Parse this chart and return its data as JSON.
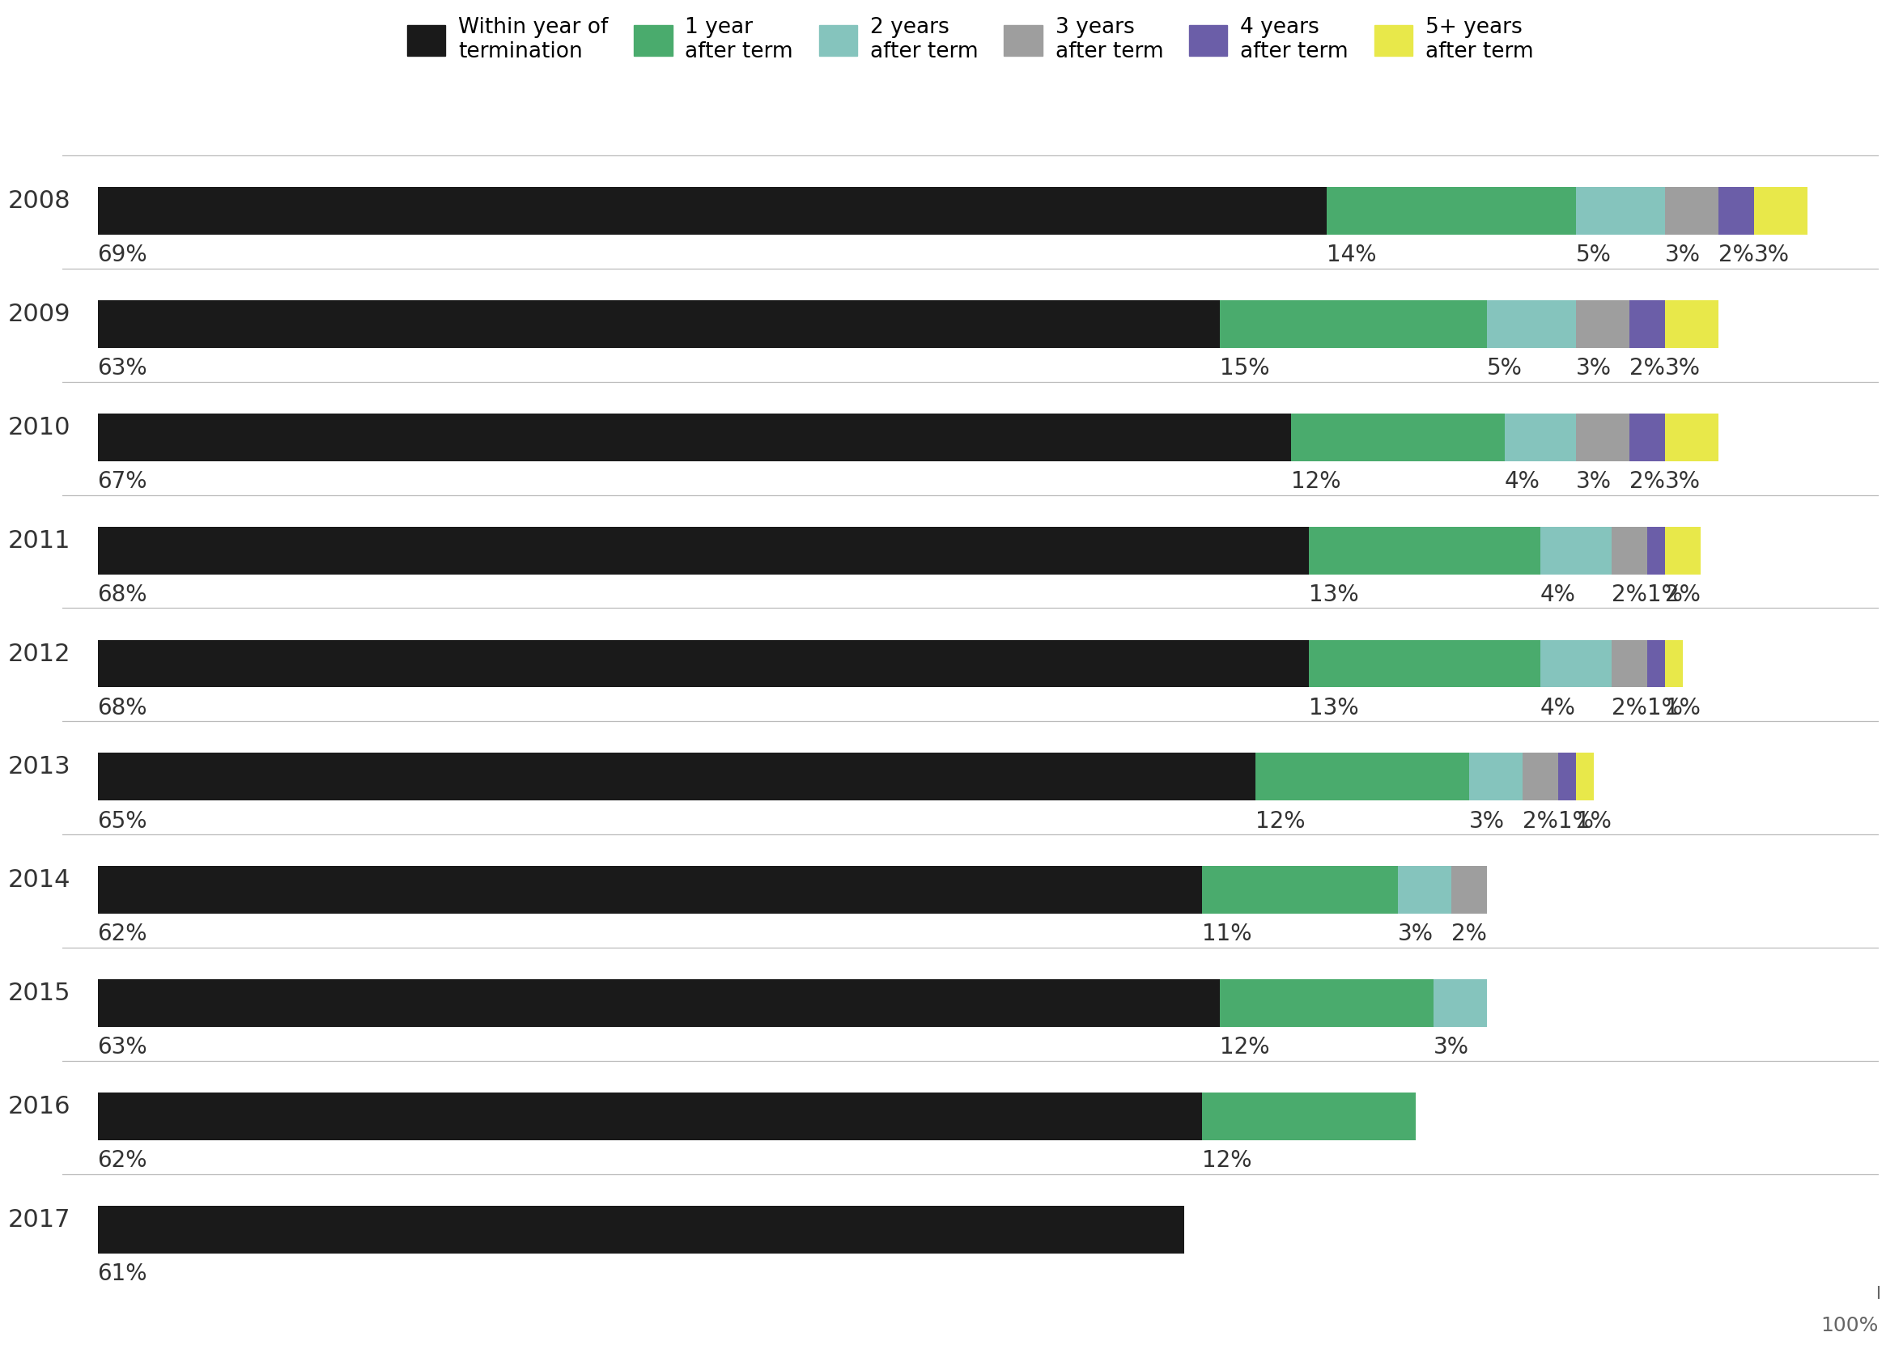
{
  "years": [
    "2008",
    "2009",
    "2010",
    "2011",
    "2012",
    "2013",
    "2014",
    "2015",
    "2016",
    "2017"
  ],
  "series": {
    "within_year": [
      69,
      63,
      67,
      68,
      68,
      65,
      62,
      63,
      62,
      61
    ],
    "1_year": [
      14,
      15,
      12,
      13,
      13,
      12,
      11,
      12,
      12,
      0
    ],
    "2_years": [
      5,
      5,
      4,
      4,
      4,
      3,
      3,
      3,
      0,
      0
    ],
    "3_years": [
      3,
      3,
      3,
      2,
      2,
      2,
      2,
      0,
      0,
      0
    ],
    "4_years": [
      2,
      2,
      2,
      1,
      1,
      1,
      0,
      0,
      0,
      0
    ],
    "5plus_years": [
      3,
      3,
      3,
      2,
      1,
      1,
      0,
      0,
      0,
      0
    ]
  },
  "colors": {
    "within_year": "#1a1a1a",
    "1_year": "#4aab6d",
    "2_years": "#85c4bd",
    "3_years": "#9e9e9e",
    "4_years": "#6b5ea8",
    "5plus_years": "#e8e84a"
  },
  "legend_labels": [
    "Within year of\ntermination",
    "1 year\nafter term",
    "2 years\nafter term",
    "3 years\nafter term",
    "4 years\nafter term",
    "5+ years\nafter term"
  ],
  "bar_height": 0.42,
  "fig_width": 26.4,
  "fig_height": 16.78,
  "background_color": "#ffffff",
  "fontsize_year": 22,
  "fontsize_pct": 20,
  "label_color": "#333333",
  "separator_color": "#bbbbbb",
  "hundred_pct_color": "#666666"
}
